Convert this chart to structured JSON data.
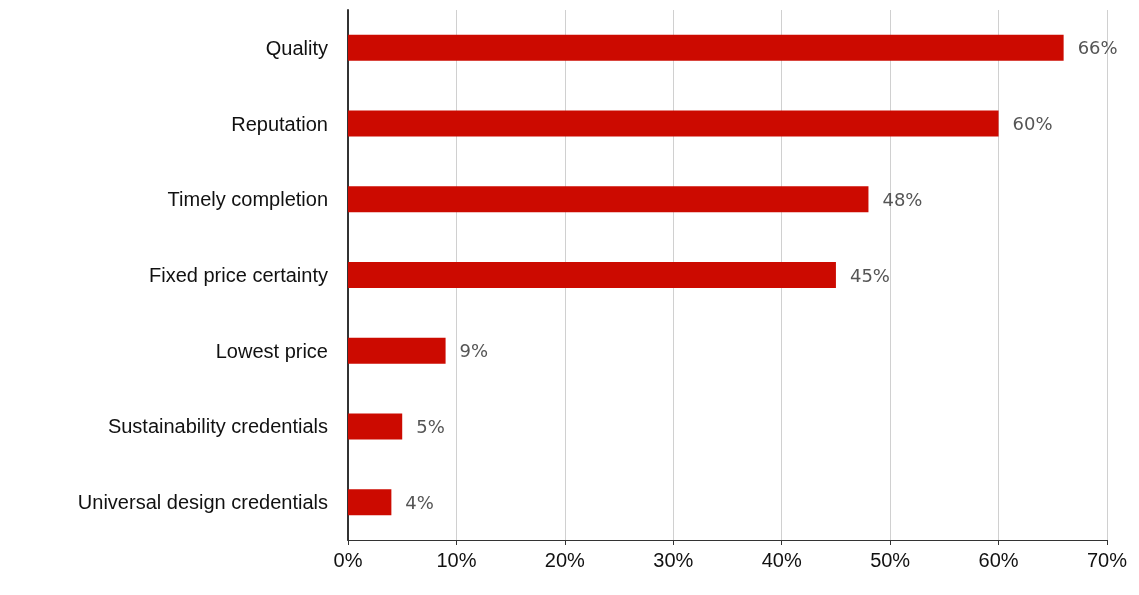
{
  "chart_data": {
    "type": "bar",
    "orientation": "horizontal",
    "categories": [
      "Quality",
      "Reputation",
      "Timely completion",
      "Fixed price certainty",
      "Lowest price",
      "Sustainability credentials",
      "Universal design credentials"
    ],
    "values": [
      66,
      60,
      48,
      45,
      9,
      5,
      4
    ],
    "value_labels": [
      "66%",
      "60%",
      "48%",
      "45%",
      "9%",
      "5%",
      "4%"
    ],
    "color": "#cc0a00",
    "xlim": [
      0,
      70
    ],
    "xticks": [
      {
        "value": 0,
        "label": "0%"
      },
      {
        "value": 10,
        "label": "10%"
      },
      {
        "value": 20,
        "label": "20%"
      },
      {
        "value": 30,
        "label": "30%"
      },
      {
        "value": 40,
        "label": "40%"
      },
      {
        "value": 50,
        "label": "50%"
      },
      {
        "value": 60,
        "label": "60%"
      },
      {
        "value": 70,
        "label": "70%"
      }
    ],
    "grid": "x"
  }
}
